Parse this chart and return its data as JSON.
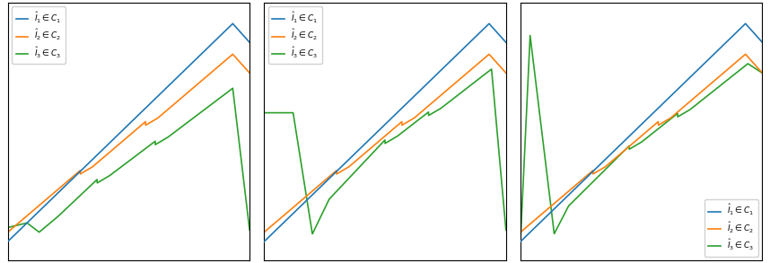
{
  "colors": {
    "blue": "#1f77b4",
    "orange": "#ff7f0e",
    "green": "#2ca02c"
  },
  "legend_texts": [
    "$\\hat{I}_1 \\in C_1$",
    "$\\hat{I}_2 \\in C_2$",
    "$\\hat{I}_3 \\in C_3$"
  ],
  "panel_legend_positions": [
    "upper left",
    "upper left",
    "lower right"
  ],
  "n_panels": 3,
  "figsize": [
    8.58,
    2.93
  ],
  "dpi": 100
}
